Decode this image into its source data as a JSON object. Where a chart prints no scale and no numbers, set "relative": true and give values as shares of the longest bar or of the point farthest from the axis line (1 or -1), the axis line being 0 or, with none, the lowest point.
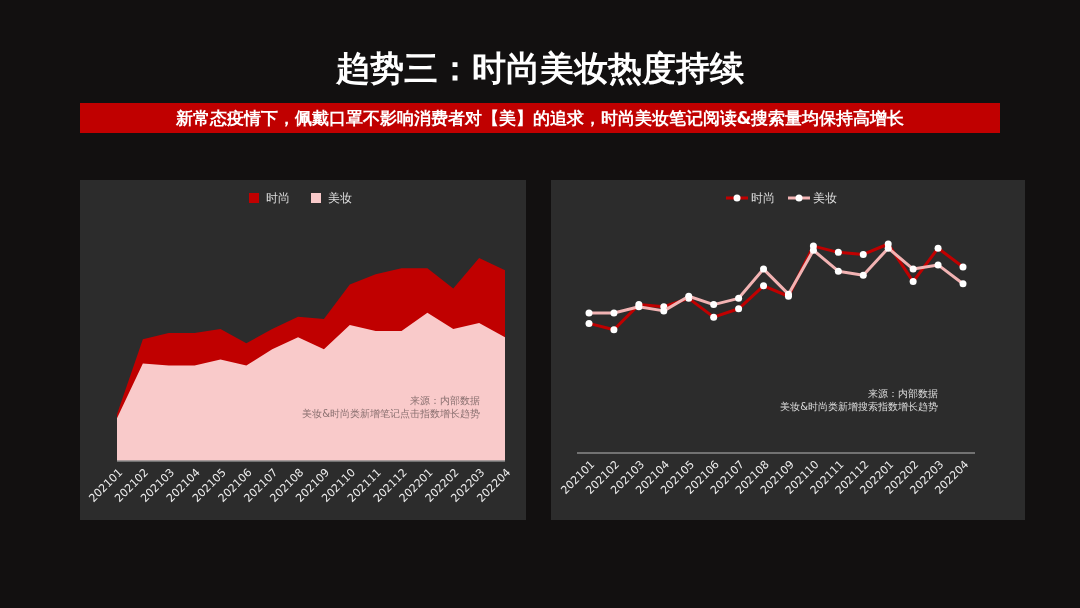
{
  "chart_data": [
    {
      "type": "area",
      "title": "趋势三：时尚美妆热度持续",
      "subtitle": "新常态疫情下，佩戴口罩不影响消费者对【美】的追求，时尚美妆笔记阅读&搜索量均保持高增长",
      "relative": true,
      "legend": "top",
      "categories": [
        "202101",
        "202102",
        "202103",
        "202104",
        "202105",
        "202106",
        "202107",
        "202108",
        "202109",
        "202110",
        "202111",
        "202112",
        "202201",
        "202202",
        "202203",
        "202204"
      ],
      "series": [
        {
          "name": "时尚",
          "color": "#c00000",
          "values": [
            0.23,
            0.6,
            0.63,
            0.63,
            0.65,
            0.58,
            0.65,
            0.71,
            0.7,
            0.87,
            0.92,
            0.95,
            0.95,
            0.85,
            1,
            0.94
          ]
        },
        {
          "name": "美妆",
          "color": "#f9caca",
          "values": [
            0.21,
            0.48,
            0.47,
            0.47,
            0.5,
            0.47,
            0.55,
            0.61,
            0.55,
            0.67,
            0.64,
            0.64,
            0.73,
            0.65,
            0.68,
            0.61
          ]
        }
      ],
      "annotations": [
        "来源：内部数据",
        "美妆&时尚类新增笔记点击指数增长趋势"
      ]
    },
    {
      "type": "line",
      "relative": true,
      "legend": "top",
      "marker": "circle",
      "categories": [
        "202101",
        "202102",
        "202103",
        "202104",
        "202105",
        "202106",
        "202107",
        "202108",
        "202109",
        "202110",
        "202111",
        "202112",
        "202201",
        "202202",
        "202203",
        "202204"
      ],
      "series": [
        {
          "name": "时尚",
          "color": "#c00000",
          "values": [
            0.62,
            0.59,
            0.71,
            0.7,
            0.74,
            0.65,
            0.69,
            0.8,
            0.75,
            0.99,
            0.96,
            0.95,
            1,
            0.82,
            0.98,
            0.89
          ]
        },
        {
          "name": "美妆",
          "color": "#f2b3b3",
          "values": [
            0.67,
            0.67,
            0.7,
            0.68,
            0.75,
            0.71,
            0.74,
            0.88,
            0.76,
            0.97,
            0.87,
            0.85,
            0.98,
            0.88,
            0.9,
            0.81
          ]
        }
      ],
      "annotations": [
        "来源：内部数据",
        "美妆&时尚类新增搜索指数增长趋势"
      ]
    }
  ]
}
